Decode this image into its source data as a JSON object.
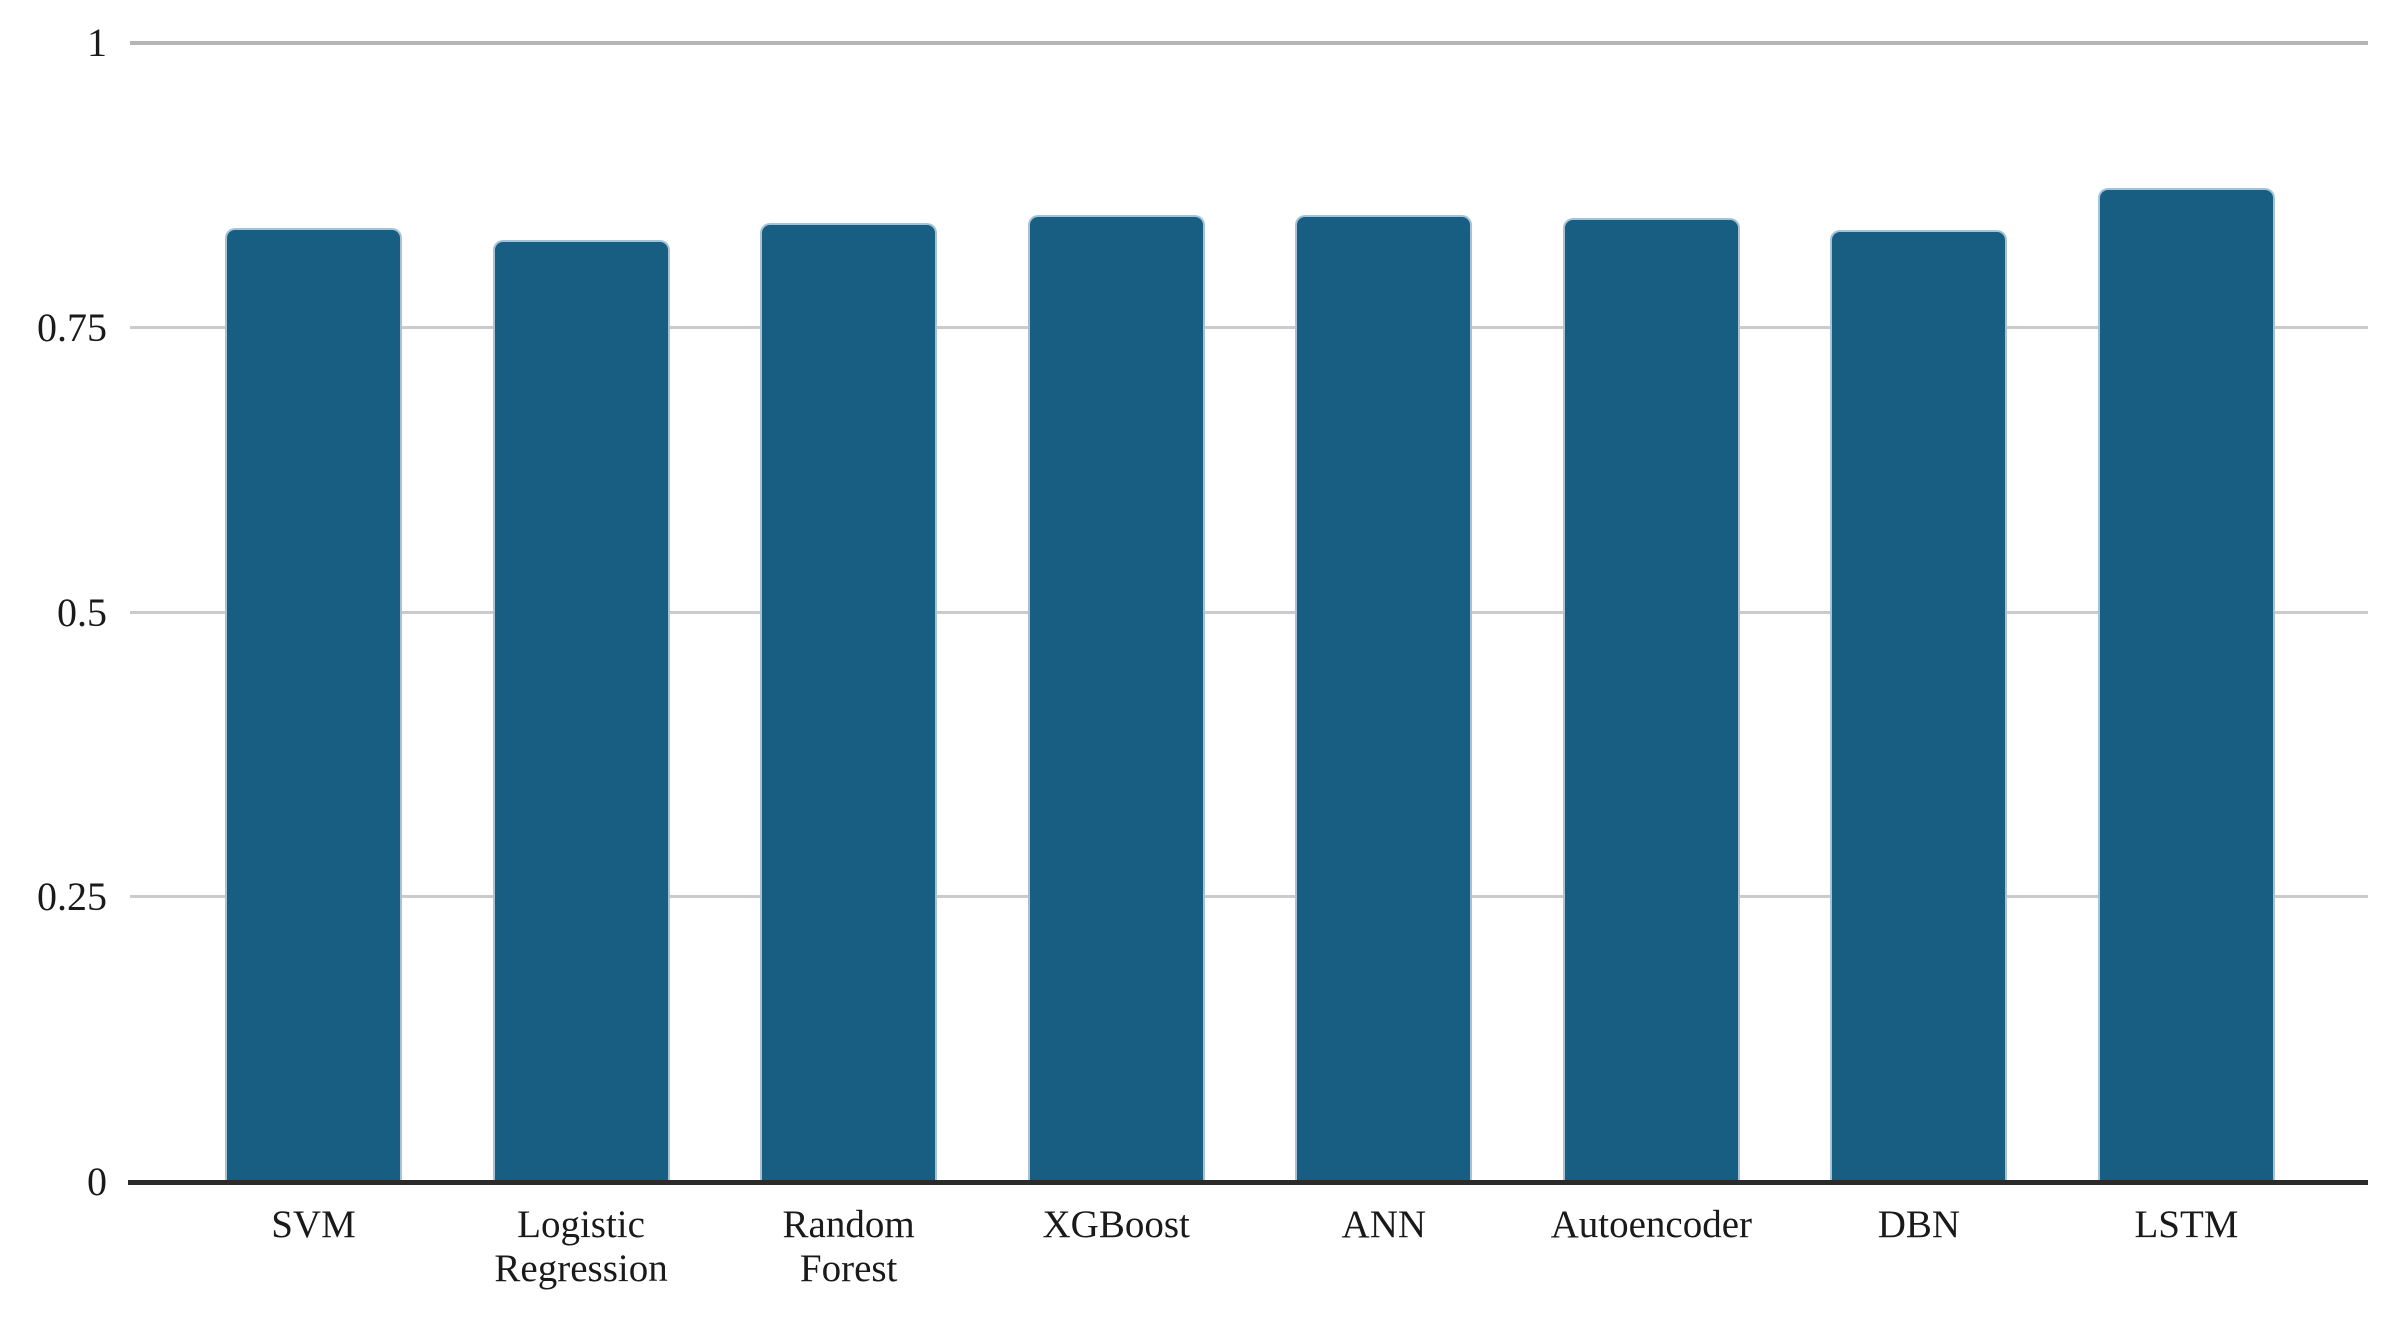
{
  "chart_data": {
    "type": "bar",
    "title": "",
    "xlabel": "",
    "ylabel": "",
    "categories": [
      "SVM",
      "Logistic\nRegression",
      "Random\nForest",
      "XGBoost",
      "ANN",
      "Autoencoder",
      "DBN",
      "LSTM"
    ],
    "values": [
      0.838,
      0.827,
      0.842,
      0.849,
      0.849,
      0.846,
      0.836,
      0.873
    ],
    "ylim": [
      0,
      1
    ],
    "yticks": [
      0,
      0.25,
      0.5,
      0.75,
      1
    ],
    "ytick_labels": [
      "0",
      "0.25",
      "0.5",
      "0.75",
      "1"
    ],
    "grid": "horizontal",
    "legend": "none",
    "colors": {
      "bar": "#175e82",
      "bar_edge": "#a9c2d1",
      "gridline": "#cbcbcb",
      "axis_line": "#2b2b2b",
      "text": "#1a1a1a",
      "background": "#ffffff"
    }
  }
}
